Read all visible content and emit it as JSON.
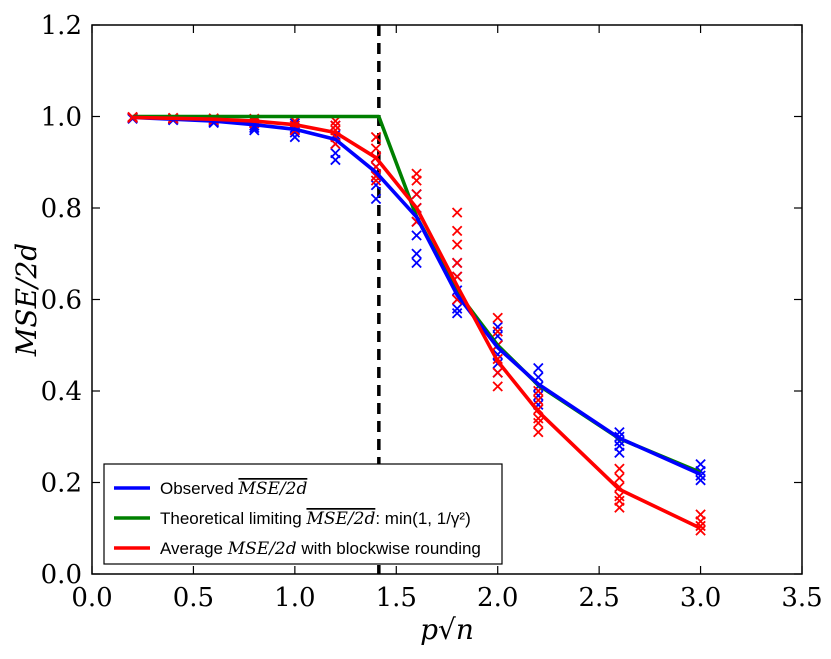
{
  "chart_data": {
    "type": "line",
    "title": "",
    "xlabel": "p√n",
    "ylabel": "MSE/2d",
    "xlim": [
      0.0,
      3.5
    ],
    "ylim": [
      0.0,
      1.2
    ],
    "xticks": [
      "0.0",
      "0.5",
      "1.0",
      "1.5",
      "2.0",
      "2.5",
      "3.0",
      "3.5"
    ],
    "yticks": [
      "0.0",
      "0.2",
      "0.4",
      "0.6",
      "0.8",
      "1.0",
      "1.2"
    ],
    "grid": false,
    "legend_position": "bottom-left",
    "vline_x": 1.414,
    "x": [
      0.2,
      0.4,
      0.6,
      0.8,
      1.0,
      1.2,
      1.4,
      1.6,
      1.8,
      2.0,
      2.2,
      2.6,
      3.0
    ],
    "series": [
      {
        "name": "Observed MSE/2d",
        "legend_prefix": "Observed ",
        "legend_math": "MSE/2d",
        "legend_suffix": "",
        "overline": true,
        "color": "#0000ff",
        "values": [
          0.998,
          0.994,
          0.99,
          0.982,
          0.972,
          0.95,
          0.878,
          0.78,
          0.61,
          0.495,
          0.415,
          0.297,
          0.218
        ],
        "scatter": [
          [
            0.998,
            0.997,
            0.996,
            0.995
          ],
          [
            0.996,
            0.994,
            0.993,
            0.992
          ],
          [
            0.994,
            0.99,
            0.988,
            0.986
          ],
          [
            0.99,
            0.98,
            0.975,
            0.97
          ],
          [
            0.985,
            0.975,
            0.965,
            0.955
          ],
          [
            0.98,
            0.96,
            0.94,
            0.92,
            0.905
          ],
          [
            0.91,
            0.89,
            0.87,
            0.85,
            0.82
          ],
          [
            0.83,
            0.8,
            0.77,
            0.74,
            0.7,
            0.68
          ],
          [
            0.68,
            0.65,
            0.62,
            0.6,
            0.58,
            0.57
          ],
          [
            0.54,
            0.52,
            0.5,
            0.48,
            0.46,
            0.44
          ],
          [
            0.45,
            0.43,
            0.41,
            0.39,
            0.37
          ],
          [
            0.31,
            0.3,
            0.29,
            0.28,
            0.265
          ],
          [
            0.24,
            0.225,
            0.215,
            0.205
          ]
        ]
      },
      {
        "name": "Theoretical limiting MSE/2d: min(1, 1/γ²)",
        "legend_prefix": "Theoretical limiting ",
        "legend_math": "MSE/2d",
        "legend_suffix": ": min(1, 1/γ²)",
        "overline": true,
        "color": "#008000",
        "x": [
          0.2,
          0.4,
          0.6,
          0.8,
          1.0,
          1.2,
          1.414,
          1.6,
          1.8,
          2.0,
          2.2,
          2.6,
          3.0
        ],
        "values": [
          1.0,
          1.0,
          1.0,
          1.0,
          1.0,
          1.0,
          1.0,
          0.781,
          0.617,
          0.5,
          0.413,
          0.296,
          0.222
        ]
      },
      {
        "name": "Average MSE/2d with blockwise rounding",
        "legend_prefix": "Average ",
        "legend_math": "MSE/2d",
        "legend_suffix": " with blockwise rounding",
        "overline": false,
        "color": "#ff0000",
        "values": [
          0.998,
          0.996,
          0.994,
          0.99,
          0.982,
          0.965,
          0.91,
          0.8,
          0.63,
          0.465,
          0.355,
          0.185,
          0.1
        ],
        "scatter": [
          [
            0.999,
            0.998,
            0.997
          ],
          [
            0.997,
            0.996,
            0.995
          ],
          [
            0.996,
            0.994,
            0.992
          ],
          [
            0.995,
            0.99,
            0.985
          ],
          [
            0.99,
            0.98,
            0.97
          ],
          [
            0.99,
            0.98,
            0.97,
            0.955,
            0.94
          ],
          [
            0.955,
            0.93,
            0.91,
            0.89,
            0.87,
            0.86
          ],
          [
            0.875,
            0.86,
            0.83,
            0.8,
            0.77
          ],
          [
            0.79,
            0.75,
            0.72,
            0.68,
            0.65,
            0.6
          ],
          [
            0.56,
            0.53,
            0.5,
            0.47,
            0.44,
            0.41
          ],
          [
            0.4,
            0.38,
            0.36,
            0.34,
            0.33,
            0.31
          ],
          [
            0.23,
            0.21,
            0.19,
            0.17,
            0.16,
            0.145
          ],
          [
            0.13,
            0.115,
            0.105,
            0.095
          ]
        ]
      }
    ]
  }
}
